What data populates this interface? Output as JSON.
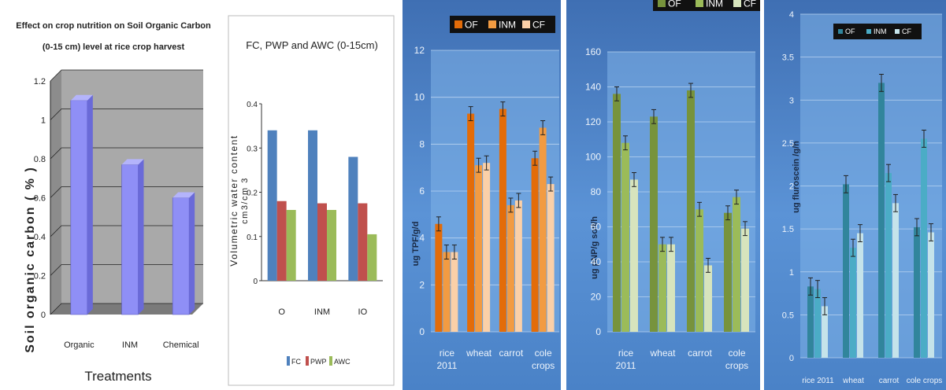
{
  "chart_data": [
    {
      "type": "bar",
      "title": "Effect on crop nutrition on Soil Organic Carbon (0-15 cm) level at rice crop harvest",
      "title_lines": [
        "Effect on crop nutrition on Soil Organic Carbon",
        "(0-15 cm) level at rice crop harvest"
      ],
      "xlabel": "Treatments",
      "ylabel": "Soil organic carbon ( % )",
      "categories": [
        "Organic",
        "INM",
        "Chemical"
      ],
      "values": [
        1.1,
        0.77,
        0.6
      ],
      "ylim": [
        0,
        1.2
      ],
      "yticks": [
        "0",
        "0.2",
        "0.4",
        "0.6",
        "0.8",
        "1",
        "1.2"
      ],
      "grid": true,
      "style": "3d",
      "colors": {
        "bar": "#8f8ff6",
        "wall": "#a9a9a9"
      }
    },
    {
      "type": "bar",
      "title": "FC, PWP and AWC (0-15cm)",
      "ylabel": "Volumetric water content (cm3/cm3)",
      "ylabel_lines": [
        "Volumetric water content",
        "cm3/cm 3"
      ],
      "categories": [
        "O",
        "INM",
        "IO"
      ],
      "series": [
        {
          "name": "FC",
          "values": [
            0.34,
            0.34,
            0.28
          ]
        },
        {
          "name": "PWP",
          "values": [
            0.18,
            0.175,
            0.175
          ]
        },
        {
          "name": "AWC",
          "values": [
            0.16,
            0.16,
            0.105
          ]
        }
      ],
      "ylim": [
        0,
        0.4
      ],
      "yticks": [
        "0",
        "0.1",
        "0.2",
        "0.3",
        "0.4"
      ],
      "grid": false,
      "legend": "bottom",
      "colors": {
        "FC": "#4f81bd",
        "PWP": "#c0504d",
        "AWC": "#9bbb59"
      }
    },
    {
      "type": "bar",
      "ylabel": "ug TPF/g/d",
      "categories": [
        "rice 2011",
        "wheat",
        "carrot",
        "cole crops"
      ],
      "series": [
        {
          "name": "OF",
          "values": [
            4.6,
            9.3,
            9.5,
            7.4
          ]
        },
        {
          "name": "INM",
          "values": [
            3.4,
            7.1,
            5.4,
            8.7
          ]
        },
        {
          "name": "CF",
          "values": [
            3.4,
            7.2,
            5.6,
            6.3
          ]
        }
      ],
      "ylim": [
        0,
        12
      ],
      "yticks": [
        "0",
        "2",
        "4",
        "6",
        "8",
        "10",
        "12"
      ],
      "grid": true,
      "legend": "top",
      "colors": {
        "OF": "#e36c09",
        "INM": "#f29b42",
        "CF": "#fbd0a8",
        "background": "#4f88ce"
      }
    },
    {
      "type": "bar",
      "ylabel": "ug pNP/g soil/h",
      "categories": [
        "rice 2011",
        "wheat",
        "carrot",
        "cole crops"
      ],
      "series": [
        {
          "name": "OF",
          "values": [
            136,
            123,
            138,
            68
          ]
        },
        {
          "name": "INM",
          "values": [
            108,
            50,
            70,
            77
          ]
        },
        {
          "name": "CF",
          "values": [
            87,
            50,
            38,
            59
          ]
        }
      ],
      "ylim": [
        0,
        160
      ],
      "yticks": [
        "0",
        "20",
        "40",
        "60",
        "80",
        "100",
        "120",
        "140",
        "160"
      ],
      "grid": true,
      "legend": "top",
      "colors": {
        "OF": "#77933c",
        "INM": "#9bbb59",
        "CF": "#d7e4bd",
        "background": "#4f88ce"
      }
    },
    {
      "type": "bar",
      "ylabel": "ug fluroscein /g/h",
      "categories": [
        "rice 2011",
        "wheat",
        "carrot",
        "cole crops"
      ],
      "series": [
        {
          "name": "OF",
          "values": [
            0.83,
            2.02,
            3.2,
            1.52
          ]
        },
        {
          "name": "INM",
          "values": [
            0.8,
            1.28,
            2.15,
            2.55
          ]
        },
        {
          "name": "CF",
          "values": [
            0.6,
            1.45,
            1.8,
            1.46
          ]
        }
      ],
      "ylim": [
        0,
        4
      ],
      "yticks": [
        "0",
        "0.5",
        "1",
        "1.5",
        "2",
        "2.5",
        "3",
        "3.5",
        "4"
      ],
      "grid": true,
      "legend": "top",
      "colors": {
        "OF": "#31859c",
        "INM": "#4bacc6",
        "CF": "#c5e3ea",
        "background": "#4f88ce"
      }
    }
  ]
}
